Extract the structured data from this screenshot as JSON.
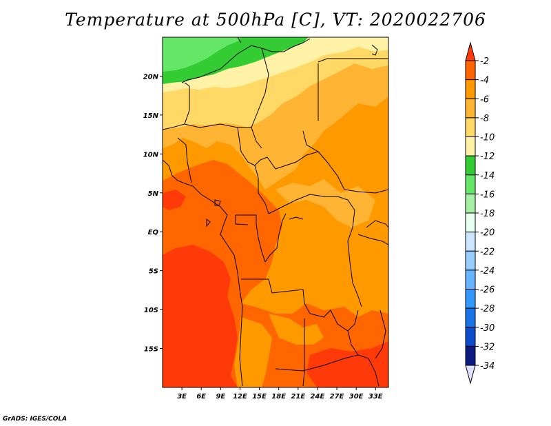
{
  "title": "Temperature at 500hPa [C], VT: 2020022706",
  "credit": "GrADS: IGES/COLA",
  "map": {
    "lon_range": [
      0,
      35
    ],
    "lat_range": [
      -20,
      25
    ],
    "lat_ticks": [
      {
        "value": 20,
        "label": "20N"
      },
      {
        "value": 15,
        "label": "15N"
      },
      {
        "value": 10,
        "label": "10N"
      },
      {
        "value": 5,
        "label": "5N"
      },
      {
        "value": 0,
        "label": "EQ"
      },
      {
        "value": -5,
        "label": "5S"
      },
      {
        "value": -10,
        "label": "10S"
      },
      {
        "value": -15,
        "label": "15S"
      }
    ],
    "lon_ticks": [
      {
        "value": 3,
        "label": "3E"
      },
      {
        "value": 6,
        "label": "6E"
      },
      {
        "value": 9,
        "label": "9E"
      },
      {
        "value": 12,
        "label": "12E"
      },
      {
        "value": 15,
        "label": "15E"
      },
      {
        "value": 18,
        "label": "18E"
      },
      {
        "value": 21,
        "label": "21E"
      },
      {
        "value": 24,
        "label": "24E"
      },
      {
        "value": 27,
        "label": "27E"
      },
      {
        "value": 30,
        "label": "30E"
      },
      {
        "value": 33,
        "label": "33E"
      }
    ]
  },
  "colorbar": {
    "labels": [
      "-2",
      "-4",
      "-6",
      "-8",
      "-10",
      "-12",
      "-14",
      "-16",
      "-18",
      "-20",
      "-22",
      "-24",
      "-26",
      "-28",
      "-30",
      "-32",
      "-34"
    ],
    "colors": [
      "#ff3a08",
      "#ff6600",
      "#ff9900",
      "#ffb533",
      "#ffd866",
      "#fff2a6",
      "#33cc33",
      "#66e666",
      "#a6f0a6",
      "#e6fff0",
      "#cce6ff",
      "#99ccff",
      "#66b3ff",
      "#3399ff",
      "#1a73e6",
      "#0d4dcc",
      "#0a1a80",
      "#e0e0ff"
    ]
  }
}
